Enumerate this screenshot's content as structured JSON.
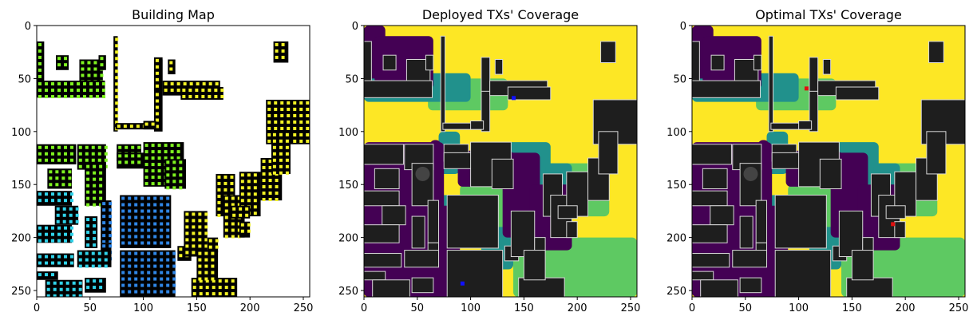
{
  "figure": {
    "panels": [
      {
        "title": "Building Map"
      },
      {
        "title": "Deployed TXs' Coverage"
      },
      {
        "title": "Optimal TXs' Coverage"
      }
    ]
  },
  "chart_data": [
    {
      "type": "heatmap",
      "title": "Building Map",
      "xlim": [
        0,
        256
      ],
      "ylim": [
        256,
        0
      ],
      "xticks": [
        0,
        50,
        100,
        150,
        200,
        250
      ],
      "yticks": [
        0,
        50,
        100,
        150,
        200,
        250
      ],
      "colors": {
        "background": "#ffffff",
        "building": "#000000",
        "dot_yellow": "#f2f224",
        "dot_green": "#7ef21f",
        "dot_blue": "#2f86e6",
        "dot_cyan": "#2fd3ea",
        "dot_navy": "#1f3ee0"
      }
    },
    {
      "type": "heatmap",
      "title": "Deployed TXs' Coverage",
      "xlim": [
        0,
        256
      ],
      "ylim": [
        256,
        0
      ],
      "xticks": [
        0,
        50,
        100,
        150,
        200,
        250
      ],
      "yticks": [
        0,
        50,
        100,
        150,
        200,
        250
      ],
      "colors": {
        "high": "#fde725",
        "mid_high": "#5ec962",
        "mid": "#21918c",
        "low": "#440154",
        "building": "#1e1e1e",
        "tx_marker": "#1010ff"
      }
    },
    {
      "type": "heatmap",
      "title": "Optimal TXs' Coverage",
      "xlim": [
        0,
        256
      ],
      "ylim": [
        256,
        0
      ],
      "xticks": [
        0,
        50,
        100,
        150,
        200,
        250
      ],
      "yticks": [
        0,
        50,
        100,
        150,
        200,
        250
      ],
      "colors": {
        "high": "#fde725",
        "mid_high": "#5ec962",
        "mid": "#21918c",
        "low": "#440154",
        "building": "#1e1e1e",
        "tx_marker": "#e01010"
      }
    }
  ]
}
